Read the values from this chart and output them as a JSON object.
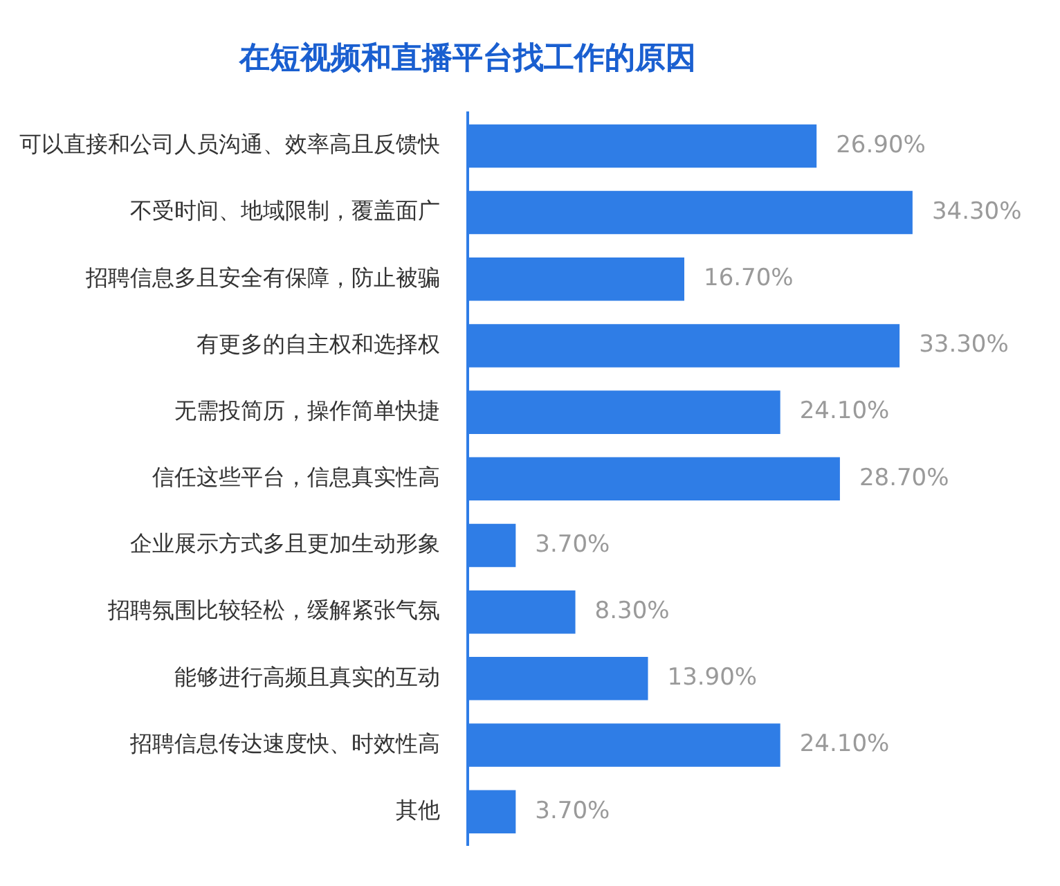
{
  "chart_data": {
    "type": "bar",
    "orientation": "horizontal",
    "title": "在短视频和直播平台找工作的原因",
    "categories": [
      "可以直接和公司人员沟通、效率高且反馈快",
      "不受时间、地域限制，覆盖面广",
      "招聘信息多且安全有保障，防止被骗",
      "有更多的自主权和选择权",
      "无需投简历，操作简单快捷",
      "信任这些平台，信息真实性高",
      "企业展示方式多且更加生动形象",
      "招聘氛围比较轻松，缓解紧张气氛",
      "能够进行高频且真实的互动",
      "招聘信息传达速度快、时效性高",
      "其他"
    ],
    "values": [
      26.9,
      34.3,
      16.7,
      33.3,
      24.1,
      28.7,
      3.7,
      8.3,
      13.9,
      24.1,
      3.7
    ],
    "value_labels": [
      "26.90%",
      "34.30%",
      "16.70%",
      "33.30%",
      "24.10%",
      "28.70%",
      "3.70%",
      "8.30%",
      "13.90%",
      "24.10%",
      "3.70%"
    ],
    "color": "#2f7de6",
    "legend": false,
    "tick_labels": "y"
  }
}
